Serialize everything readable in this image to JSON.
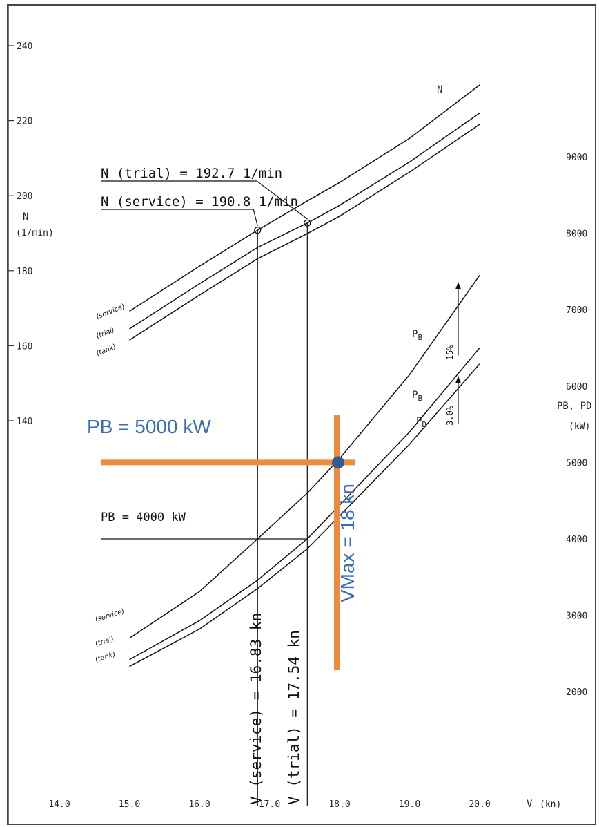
{
  "chart_data": {
    "type": "line",
    "xlabel": "V",
    "xunit": "(kn)",
    "x_ticks": [
      "14.0",
      "15.0",
      "16.0",
      "17.0",
      "18.0",
      "19.0",
      "20.0"
    ],
    "xlim": [
      14.0,
      20.0
    ],
    "left_axis": {
      "label": "N",
      "unit": "(1/min)",
      "ticks": [
        "240",
        "220",
        "200",
        "180",
        "160",
        "140"
      ],
      "ylim": [
        140,
        240
      ]
    },
    "right_axis": {
      "label": "PB, PD",
      "unit": "(kW)",
      "ticks": [
        "9000",
        "8000",
        "7000",
        "6000",
        "5000",
        "4000",
        "3000",
        "2000"
      ],
      "ylim": [
        2000,
        9000
      ]
    },
    "series": [
      {
        "name": "N",
        "label": "(service)",
        "axis": "left",
        "x": [
          15.0,
          16.0,
          16.83,
          17.54,
          18.0,
          19.0,
          20.0
        ],
        "y": [
          169.2,
          181.2,
          190.8,
          198.6,
          203.5,
          215.3,
          229.5
        ]
      },
      {
        "name": "N",
        "label": "(trial)",
        "axis": "left",
        "x": [
          15.0,
          16.0,
          16.83,
          17.54,
          18.0,
          19.0,
          20.0
        ],
        "y": [
          164.5,
          176.5,
          186.2,
          192.7,
          197.4,
          209.0,
          222.0
        ]
      },
      {
        "name": "N",
        "label": "(tank)",
        "axis": "left",
        "x": [
          15.0,
          16.0,
          16.83,
          17.54,
          18.0,
          19.0,
          20.0
        ],
        "y": [
          161.5,
          173.5,
          183.2,
          189.9,
          194.5,
          206.3,
          219.0
        ]
      },
      {
        "name": "PB",
        "label": "(service)",
        "axis": "right",
        "x": [
          15.0,
          16.0,
          16.83,
          17.54,
          18.0,
          19.0,
          20.0
        ],
        "y": [
          2700,
          3310,
          4000,
          4600,
          5050,
          6150,
          7450
        ]
      },
      {
        "name": "PB",
        "label": "(trial)",
        "axis": "right",
        "x": [
          15.0,
          16.0,
          16.83,
          17.54,
          18.0,
          19.0,
          20.0
        ],
        "y": [
          2420,
          2930,
          3460,
          4000,
          4440,
          5400,
          6500
        ]
      },
      {
        "name": "PD",
        "label": "(tank)",
        "axis": "right",
        "x": [
          15.0,
          16.0,
          16.83,
          17.54,
          18.0,
          19.0,
          20.0
        ],
        "y": [
          2330,
          2820,
          3350,
          3870,
          4300,
          5240,
          6290
        ]
      }
    ],
    "annotations": {
      "n_trial": "N (trial) = 192.7 1/min",
      "n_service": "N (service) = 190.8 1/min",
      "pb_4000": "PB = 4000 kW",
      "v_service": "V (service) = 16.83 kn",
      "v_trial": "V (trial) = 17.54 kn",
      "margin_15": "15%",
      "margin_3": "3.0%",
      "pb_5000": "PB = 5000 kW",
      "vmax": "VMax = 18 kn"
    },
    "operating_point": {
      "x": 18.0,
      "y": 5000
    },
    "colors": {
      "highlight": "#ee8a3c",
      "point": "#2f5b95",
      "text_blue": "#3a6db3"
    }
  }
}
